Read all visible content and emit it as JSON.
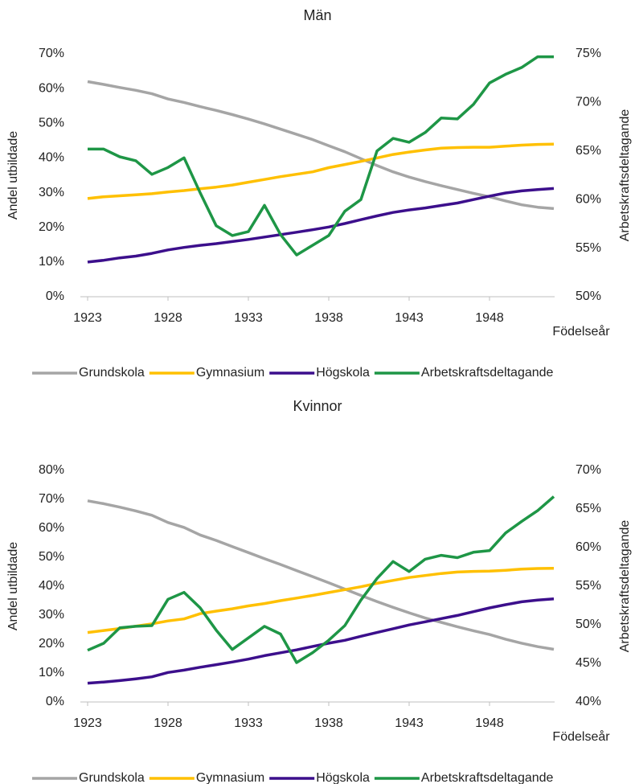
{
  "chart_data": [
    {
      "type": "line",
      "title": "Män",
      "x_label": "Födelseår",
      "y_label": "Andel utbildade",
      "y2_label": "Arbetskraftsdeltagande",
      "x": [
        1923,
        1924,
        1925,
        1926,
        1927,
        1928,
        1929,
        1930,
        1931,
        1932,
        1933,
        1934,
        1935,
        1936,
        1937,
        1938,
        1939,
        1940,
        1941,
        1942,
        1943,
        1944,
        1945,
        1946,
        1947,
        1948,
        1949,
        1950,
        1951,
        1952
      ],
      "xlim": [
        1922.55,
        1952.05
      ],
      "xticks": [
        1923,
        1928,
        1933,
        1938,
        1943,
        1948
      ],
      "ylim": [
        0,
        70
      ],
      "yticks": [
        {
          "value": 0,
          "label": "0%"
        },
        {
          "value": 10,
          "label": "10%"
        },
        {
          "value": 20,
          "label": "20%"
        },
        {
          "value": 30,
          "label": "30%"
        },
        {
          "value": 40,
          "label": "40%"
        },
        {
          "value": 50,
          "label": "50%"
        },
        {
          "value": 60,
          "label": "60%"
        },
        {
          "value": 70,
          "label": "70%"
        }
      ],
      "y2lim": [
        50,
        75
      ],
      "y2ticks": [
        {
          "value": 50,
          "label": "50%"
        },
        {
          "value": 55,
          "label": "55%"
        },
        {
          "value": 60,
          "label": "60%"
        },
        {
          "value": 65,
          "label": "65%"
        },
        {
          "value": 70,
          "label": "70%"
        },
        {
          "value": 75,
          "label": "75%"
        }
      ],
      "series": [
        {
          "name": "Grundskola",
          "color": "#a5a5a5",
          "values": [
            62,
            61.2,
            60.3,
            59.5,
            58.5,
            57,
            56,
            54.8,
            53.7,
            52.5,
            51.2,
            49.8,
            48.3,
            46.8,
            45.3,
            43.5,
            41.8,
            39.8,
            37.8,
            36,
            34.5,
            33.2,
            32,
            30.9,
            29.8,
            28.8,
            27.6,
            26.5,
            25.8,
            25.4
          ]
        },
        {
          "name": "Gymnasium",
          "color": "#ffc000",
          "values": [
            28.3,
            28.8,
            29.1,
            29.4,
            29.7,
            30.2,
            30.6,
            31.1,
            31.6,
            32.2,
            33,
            33.8,
            34.6,
            35.3,
            36,
            37.2,
            38.1,
            39,
            40,
            41,
            41.7,
            42.3,
            42.8,
            43,
            43.1,
            43.1,
            43.4,
            43.7,
            43.9,
            44
          ]
        },
        {
          "name": "Högskola",
          "color": "#3c0f8c",
          "values": [
            10,
            10.5,
            11.2,
            11.7,
            12.5,
            13.5,
            14.2,
            14.8,
            15.3,
            15.9,
            16.5,
            17.2,
            17.9,
            18.6,
            19.3,
            20.1,
            21.1,
            22.2,
            23.3,
            24.3,
            25,
            25.6,
            26.3,
            27,
            28,
            29,
            29.9,
            30.5,
            30.9,
            31.2
          ]
        },
        {
          "name": "Arbetskraftsdeltagande",
          "color": "#1e9646",
          "axis": "y2",
          "values": [
            65.2,
            65.2,
            64.4,
            64,
            62.6,
            63.3,
            64.3,
            60.7,
            57.3,
            56.3,
            56.7,
            59.4,
            56.4,
            54.3,
            55.3,
            56.3,
            58.8,
            60,
            65,
            66.3,
            65.9,
            66.9,
            68.4,
            68.3,
            69.8,
            72,
            72.9,
            73.6,
            74.7,
            74.7
          ]
        }
      ]
    },
    {
      "type": "line",
      "title": "Kvinnor",
      "x_label": "Födelseår",
      "y_label": "Andel utbildade",
      "y2_label": "Arbetskraftsdeltagande",
      "x": [
        1923,
        1924,
        1925,
        1926,
        1927,
        1928,
        1929,
        1930,
        1931,
        1932,
        1933,
        1934,
        1935,
        1936,
        1937,
        1938,
        1939,
        1940,
        1941,
        1942,
        1943,
        1944,
        1945,
        1946,
        1947,
        1948,
        1949,
        1950,
        1951,
        1952
      ],
      "xlim": [
        1922.55,
        1952.05
      ],
      "xticks": [
        1923,
        1928,
        1933,
        1938,
        1943,
        1948
      ],
      "ylim": [
        0,
        80
      ],
      "yticks": [
        {
          "value": 0,
          "label": "0%"
        },
        {
          "value": 10,
          "label": "10%"
        },
        {
          "value": 20,
          "label": "20%"
        },
        {
          "value": 30,
          "label": "30%"
        },
        {
          "value": 40,
          "label": "40%"
        },
        {
          "value": 50,
          "label": "50%"
        },
        {
          "value": 60,
          "label": "60%"
        },
        {
          "value": 70,
          "label": "70%"
        },
        {
          "value": 80,
          "label": "80%"
        }
      ],
      "y2lim": [
        40,
        70
      ],
      "y2ticks": [
        {
          "value": 40,
          "label": "40%"
        },
        {
          "value": 45,
          "label": "45%"
        },
        {
          "value": 50,
          "label": "50%"
        },
        {
          "value": 55,
          "label": "55%"
        },
        {
          "value": 60,
          "label": "60%"
        },
        {
          "value": 65,
          "label": "65%"
        },
        {
          "value": 70,
          "label": "70%"
        }
      ],
      "series": [
        {
          "name": "Grundskola",
          "color": "#a5a5a5",
          "values": [
            69.5,
            68.5,
            67.3,
            66,
            64.5,
            62,
            60.3,
            57.7,
            55.8,
            53.7,
            51.6,
            49.5,
            47.5,
            45.4,
            43.3,
            41.2,
            39,
            36.8,
            34.7,
            32.7,
            30.8,
            29,
            27.5,
            26,
            24.6,
            23.3,
            21.7,
            20.3,
            19.1,
            18.2
          ]
        },
        {
          "name": "Gymnasium",
          "color": "#ffc000",
          "values": [
            24,
            24.7,
            25.4,
            26.2,
            27,
            28,
            28.7,
            30.5,
            31.4,
            32.2,
            33.2,
            34,
            35,
            35.9,
            36.8,
            37.8,
            38.8,
            39.8,
            41,
            42,
            43,
            43.7,
            44.4,
            44.9,
            45.1,
            45.2,
            45.5,
            45.9,
            46.1,
            46.2
          ]
        },
        {
          "name": "Högskola",
          "color": "#3c0f8c",
          "values": [
            6.5,
            6.9,
            7.4,
            8,
            8.7,
            10.2,
            11,
            12,
            12.9,
            13.8,
            14.8,
            16,
            17,
            18,
            19.2,
            20.3,
            21.3,
            22.7,
            24,
            25.3,
            26.6,
            27.7,
            28.8,
            29.9,
            31.2,
            32.5,
            33.6,
            34.6,
            35.2,
            35.6
          ]
        },
        {
          "name": "Arbetskraftsdeltagande",
          "color": "#1e9646",
          "axis": "y2",
          "values": [
            46.7,
            47.6,
            49.6,
            49.8,
            49.9,
            53.3,
            54.2,
            52.2,
            49.3,
            46.8,
            48.3,
            49.8,
            48.8,
            45.1,
            46.4,
            48,
            49.9,
            53.2,
            56,
            58.2,
            56.9,
            58.5,
            59,
            58.7,
            59.4,
            59.6,
            61.9,
            63.4,
            64.8,
            66.6
          ]
        }
      ]
    }
  ]
}
